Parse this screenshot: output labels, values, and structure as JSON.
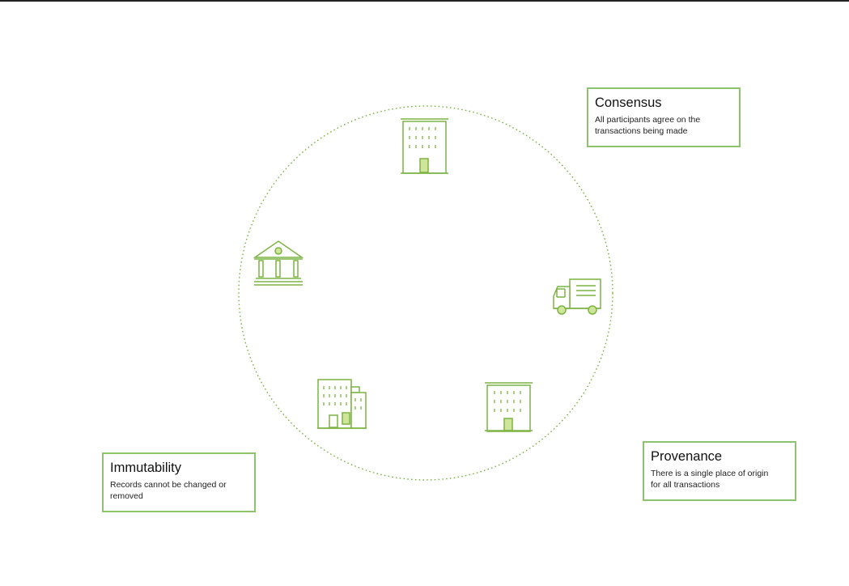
{
  "colors": {
    "accent": "#7cb342",
    "accent_fill": "#cfe59a",
    "border": "#8cc36c"
  },
  "icons": [
    "office-building-icon",
    "bank-icon",
    "delivery-truck-icon",
    "office-building-icon",
    "office-complex-icon"
  ],
  "boxes": {
    "consensus": {
      "title": "Consensus",
      "desc_lines": [
        "All participants agree on the",
        "transactions being made"
      ]
    },
    "provenance": {
      "title": "Provenance",
      "desc_lines": [
        "There is a single place of origin",
        "for all transactions"
      ]
    },
    "immutability": {
      "title": "Immutability",
      "desc_lines": [
        "Records cannot be changed or",
        "removed"
      ]
    }
  }
}
